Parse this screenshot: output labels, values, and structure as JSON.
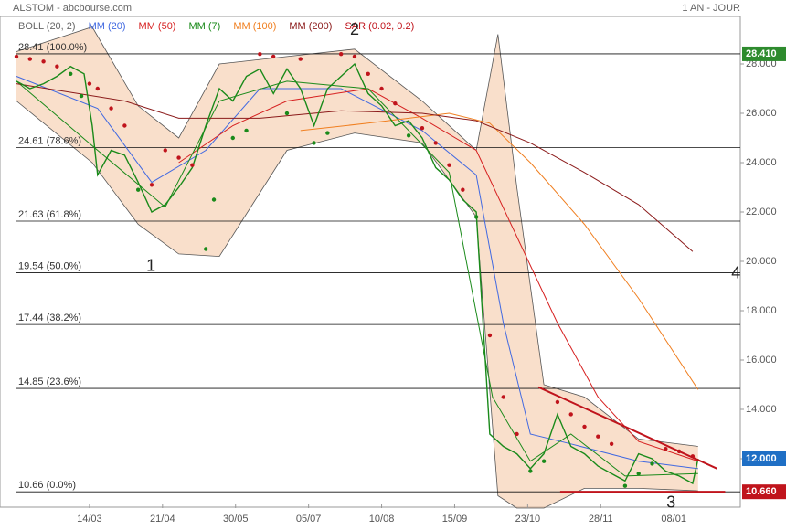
{
  "chart_data": {
    "type": "line",
    "title": "ALSTOM - abcbourse.com",
    "subtitle": "1 AN - JOUR",
    "xlim": [
      0,
      267.6
    ],
    "ylim": [
      10,
      30
    ],
    "xticks": [
      {
        "value": 27,
        "label": "14/03"
      },
      {
        "value": 54,
        "label": "21/04"
      },
      {
        "value": 81,
        "label": "30/05"
      },
      {
        "value": 108,
        "label": "05/07"
      },
      {
        "value": 135,
        "label": "10/08"
      },
      {
        "value": 162,
        "label": "15/09"
      },
      {
        "value": 189,
        "label": "23/10"
      },
      {
        "value": 216,
        "label": "28/11"
      },
      {
        "value": 243,
        "label": "08/01"
      }
    ],
    "yticks": [
      {
        "value": 12,
        "label": "12.000"
      },
      {
        "value": 14,
        "label": "14.000"
      },
      {
        "value": 16,
        "label": "16.000"
      },
      {
        "value": 18,
        "label": "18.000"
      },
      {
        "value": 20,
        "label": "20.000"
      },
      {
        "value": 22,
        "label": "22.000"
      },
      {
        "value": 24,
        "label": "24.000"
      },
      {
        "value": 26,
        "label": "26.000"
      },
      {
        "value": 28,
        "label": "28.000"
      }
    ],
    "fib_levels": [
      {
        "value": 28.41,
        "label": "28.41  (100.0%)"
      },
      {
        "value": 24.61,
        "label": "24.61  (78.6%)"
      },
      {
        "value": 21.63,
        "label": "21.63  (61.8%)"
      },
      {
        "value": 19.54,
        "label": "19.54  (50.0%)"
      },
      {
        "value": 17.44,
        "label": "17.44  (38.2%)"
      },
      {
        "value": 14.85,
        "label": "14.85  (23.6%)"
      },
      {
        "value": 10.66,
        "label": "10.66  (0.0%)"
      }
    ],
    "price_labels": [
      {
        "value": 28.41,
        "label": "28.410",
        "color": "#2e8b2e"
      },
      {
        "value": 12,
        "label": "12.000",
        "color": "#1f6fc5"
      },
      {
        "value": 10.66,
        "label": "10.660",
        "color": "#c0141c"
      }
    ],
    "bands": {
      "name": "BOLL (20, 2)",
      "color": "#f5c9a8",
      "edge": "#555555",
      "x": [
        0,
        28,
        45,
        60,
        75,
        100,
        125,
        150,
        170,
        178,
        185,
        195,
        210,
        230,
        252
      ],
      "upper": [
        28.5,
        29.5,
        26.3,
        25.0,
        28.0,
        28.3,
        28.6,
        26.5,
        24.5,
        29.2,
        23.0,
        15.0,
        14.5,
        12.8,
        12.5
      ],
      "lower": [
        26.5,
        24.0,
        21.5,
        20.3,
        20.2,
        24.5,
        25.2,
        24.8,
        21.8,
        10.5,
        10.0,
        10.0,
        10.8,
        10.8,
        10.7
      ]
    },
    "price": {
      "color": "#1a8a1a",
      "x": [
        0,
        5,
        10,
        15,
        20,
        25,
        28,
        30,
        35,
        40,
        45,
        50,
        55,
        60,
        65,
        70,
        75,
        80,
        85,
        90,
        95,
        100,
        105,
        110,
        115,
        120,
        125,
        130,
        135,
        140,
        145,
        150,
        155,
        160,
        165,
        170,
        175,
        180,
        185,
        190,
        195,
        200,
        205,
        210,
        215,
        220,
        225,
        230,
        235,
        240,
        245,
        250,
        252
      ],
      "values": [
        27.3,
        27.0,
        27.2,
        27.5,
        27.9,
        27.6,
        25.5,
        23.5,
        24.5,
        24.3,
        23.2,
        22.0,
        22.3,
        23.0,
        23.8,
        25.5,
        27.0,
        26.5,
        27.5,
        27.8,
        26.8,
        27.8,
        27.0,
        25.5,
        27.0,
        27.5,
        28.0,
        26.8,
        26.3,
        25.5,
        25.7,
        25.0,
        23.8,
        23.3,
        22.5,
        22.0,
        13.0,
        12.5,
        12.2,
        11.6,
        12.2,
        13.8,
        12.5,
        12.2,
        11.7,
        11.4,
        11.1,
        12.2,
        12.0,
        11.5,
        11.3,
        11.0,
        12.0
      ]
    },
    "series": [
      {
        "name": "MM (20)",
        "color": "#4169e1",
        "x": [
          0,
          30,
          50,
          70,
          90,
          120,
          150,
          170,
          180,
          190,
          205,
          230,
          252
        ],
        "values": [
          27.5,
          26.2,
          23.2,
          24.5,
          27.0,
          27.0,
          25.3,
          23.5,
          17.5,
          13.0,
          12.6,
          11.9,
          11.6
        ]
      },
      {
        "name": "MM (50)",
        "color": "#d62020",
        "x": [
          60,
          80,
          100,
          130,
          150,
          170,
          185,
          200,
          215,
          230,
          252
        ],
        "values": [
          24.0,
          25.5,
          26.5,
          27.0,
          25.8,
          24.5,
          21.0,
          17.5,
          14.5,
          12.7,
          11.9
        ]
      },
      {
        "name": "MM (7)",
        "color": "#1a8a1a",
        "x": [
          0,
          30,
          55,
          75,
          100,
          130,
          160,
          176,
          190,
          205,
          225,
          252
        ],
        "values": [
          27.3,
          24.5,
          22.2,
          26.5,
          27.3,
          27.0,
          23.6,
          14.5,
          11.9,
          13.0,
          11.3,
          11.4
        ]
      },
      {
        "name": "MM (100)",
        "color": "#f07f20",
        "x": [
          105,
          130,
          160,
          175,
          190,
          210,
          230,
          252
        ],
        "values": [
          25.3,
          25.6,
          26.0,
          25.6,
          24.0,
          21.5,
          18.5,
          14.8
        ]
      },
      {
        "name": "MM (200)",
        "color": "#8b1a1a",
        "x": [
          0,
          40,
          60,
          90,
          120,
          150,
          170,
          190,
          210,
          230,
          250
        ],
        "values": [
          27.2,
          26.5,
          25.8,
          25.8,
          26.1,
          26.0,
          25.7,
          24.8,
          23.6,
          22.3,
          20.4
        ]
      }
    ],
    "sar": {
      "name": "SAR (0.02, 0.2)",
      "color": "#c0141c",
      "color_below": "#1a8a1a",
      "x": [
        0,
        5,
        10,
        15,
        20,
        24,
        27,
        30,
        35,
        40,
        45,
        50,
        55,
        60,
        65,
        70,
        73,
        80,
        85,
        90,
        95,
        100,
        105,
        110,
        115,
        120,
        125,
        130,
        135,
        140,
        145,
        150,
        155,
        160,
        165,
        170,
        175,
        180,
        185,
        190,
        195,
        200,
        205,
        210,
        215,
        220,
        225,
        230,
        235,
        240,
        245,
        250
      ],
      "values": [
        28.3,
        28.2,
        28.1,
        27.9,
        27.6,
        26.7,
        27.2,
        27.0,
        26.2,
        25.5,
        22.9,
        23.1,
        24.5,
        24.2,
        23.9,
        20.5,
        22.5,
        25.0,
        25.3,
        28.4,
        28.3,
        26.0,
        28.2,
        24.8,
        25.2,
        28.4,
        28.3,
        27.6,
        27.0,
        26.4,
        25.1,
        25.4,
        24.8,
        23.9,
        22.9,
        21.8,
        17.0,
        14.5,
        13.0,
        11.5,
        11.9,
        14.3,
        13.8,
        13.3,
        12.9,
        12.6,
        10.9,
        11.4,
        11.8,
        12.4,
        12.3,
        12.1
      ]
    },
    "trendlines": [
      {
        "color": "#c0141c",
        "x": [
          193,
          259
        ],
        "values": [
          14.9,
          11.6
        ]
      },
      {
        "color": "#c0141c",
        "x": [
          201,
          262
        ],
        "values": [
          10.66,
          10.66
        ]
      }
    ],
    "annotations": [
      {
        "text": "1",
        "x": 49.7,
        "y": 19.78
      },
      {
        "text": "2",
        "x": 125,
        "y": 29.37
      },
      {
        "text": "3",
        "x": 242,
        "y": 10.2
      },
      {
        "text": "4",
        "x": 266,
        "y": 19.5
      }
    ]
  }
}
